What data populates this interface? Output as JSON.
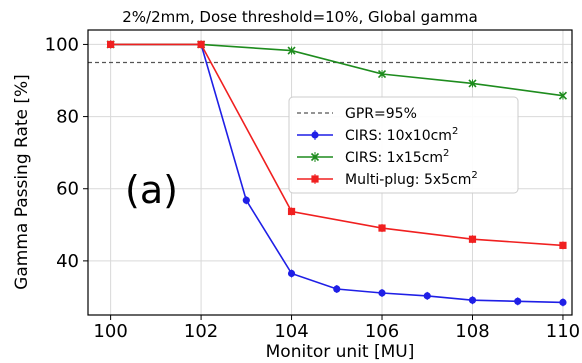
{
  "chart_data": {
    "type": "line",
    "title": "2%/2mm, Dose threshold=10%, Global gamma",
    "xlabel": "Monitor unit [MU]",
    "ylabel": "Gamma Passing Rate [%]",
    "panel_label": "(a)",
    "xlim": [
      99.5,
      110.2
    ],
    "ylim": [
      25,
      104
    ],
    "xticks": [
      100,
      102,
      104,
      106,
      108,
      110
    ],
    "yticks": [
      40,
      60,
      80,
      100
    ],
    "grid": true,
    "legend_position": "center-right",
    "reference_line": {
      "name": "GPR=95%",
      "y": 95,
      "color": "#555555",
      "style": "dashed"
    },
    "series": [
      {
        "name": "CIRS: 10x10cm",
        "name_sup": "2",
        "color": "#1f1fe6",
        "marker": "circle",
        "x": [
          100,
          102,
          103,
          104,
          105,
          106,
          107,
          108,
          109,
          110
        ],
        "y": [
          100,
          100,
          56.8,
          36.5,
          32.2,
          31.1,
          30.3,
          29.1,
          28.8,
          28.5
        ]
      },
      {
        "name": "CIRS: 1x15cm",
        "name_sup": "2",
        "color": "#1e8c1e",
        "marker": "x",
        "x": [
          100,
          102,
          104,
          106,
          108,
          110
        ],
        "y": [
          100,
          100,
          98.3,
          91.8,
          89.2,
          85.8
        ]
      },
      {
        "name": "Multi-plug: 5x5cm",
        "name_sup": "2",
        "color": "#f02020",
        "marker": "square",
        "x": [
          100,
          102,
          104,
          106,
          108,
          110
        ],
        "y": [
          100,
          100,
          53.7,
          49.1,
          46.0,
          44.3
        ]
      }
    ]
  }
}
